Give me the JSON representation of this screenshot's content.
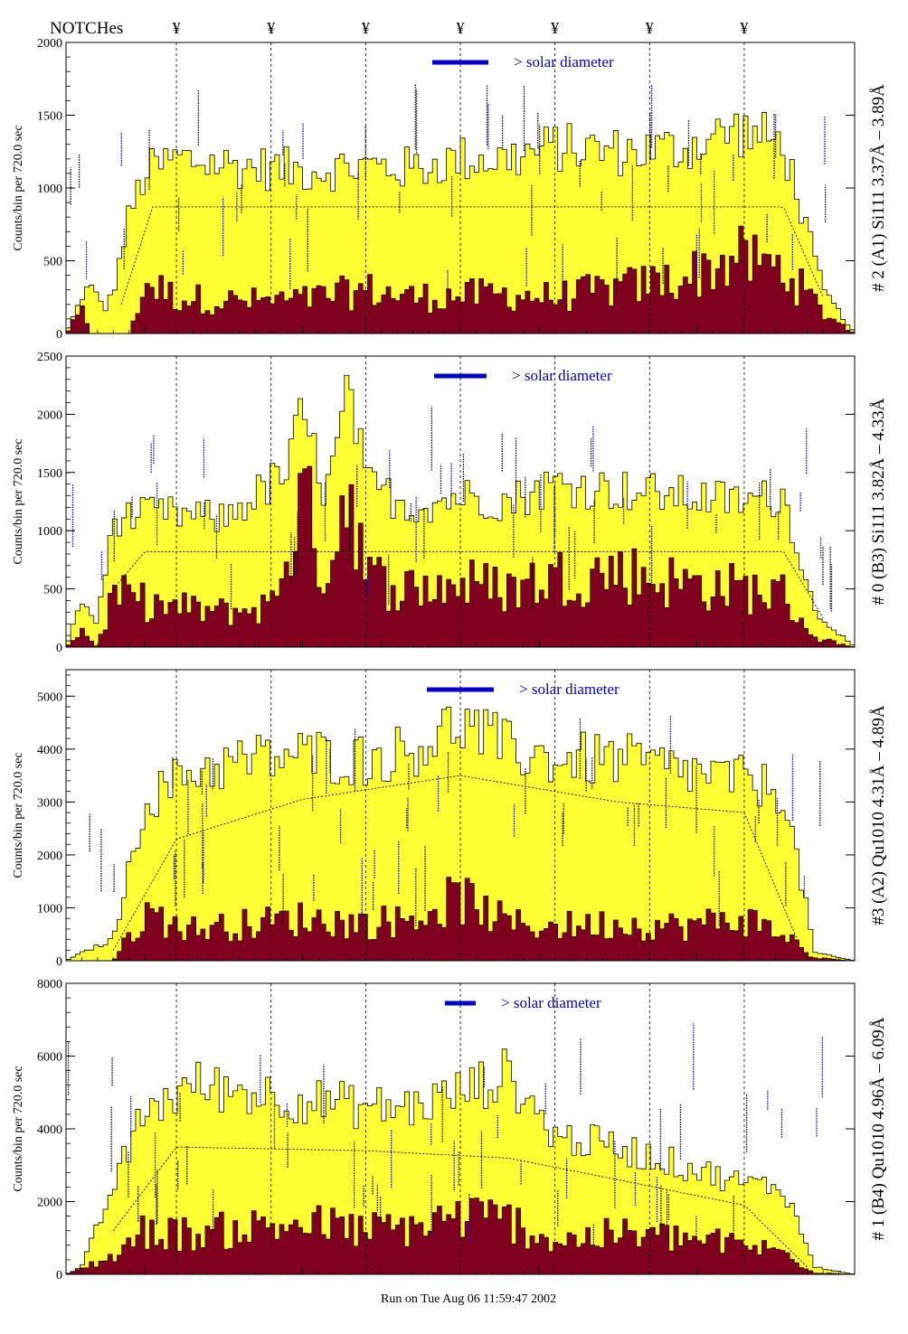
{
  "header": {
    "label": "NOTCHes",
    "notch_symbol": "¥"
  },
  "footer": {
    "run_text": "Run on Tue Aug 06 11:59:47 2002"
  },
  "colors": {
    "total_fill": "#ffff33",
    "component_fill": "#800020",
    "annotation": "#0000cc",
    "axis": "#000000"
  },
  "legend_label": "> solar diameter",
  "notch_positions": [
    140,
    260,
    380,
    500,
    620,
    740,
    860
  ],
  "chart_data": [
    {
      "type": "area",
      "ylabel": "Counts/bin per     720.0 sec",
      "right_label": "# 2 (A1) Si111  3.37Å – 3.89Å",
      "ylim": [
        0,
        2000
      ],
      "yticks": [
        0,
        500,
        1000,
        1500,
        2000
      ],
      "xlim": [
        0,
        1000
      ],
      "total": {
        "values": [
          [
            0,
            0
          ],
          [
            20,
            250
          ],
          [
            30,
            330
          ],
          [
            50,
            170
          ],
          [
            60,
            290
          ],
          [
            80,
            800
          ],
          [
            100,
            1100
          ],
          [
            140,
            1200
          ],
          [
            220,
            1150
          ],
          [
            300,
            1120
          ],
          [
            380,
            1150
          ],
          [
            440,
            1130
          ],
          [
            500,
            1200
          ],
          [
            560,
            1200
          ],
          [
            620,
            1280
          ],
          [
            700,
            1250
          ],
          [
            780,
            1270
          ],
          [
            850,
            1400
          ],
          [
            910,
            1300
          ],
          [
            960,
            300
          ],
          [
            1000,
            0
          ]
        ]
      },
      "component": {
        "values": [
          [
            0,
            0
          ],
          [
            20,
            150
          ],
          [
            30,
            0
          ],
          [
            60,
            0
          ],
          [
            80,
            0
          ],
          [
            100,
            350
          ],
          [
            140,
            250
          ],
          [
            220,
            220
          ],
          [
            300,
            230
          ],
          [
            380,
            300
          ],
          [
            440,
            250
          ],
          [
            500,
            260
          ],
          [
            560,
            270
          ],
          [
            620,
            250
          ],
          [
            700,
            310
          ],
          [
            780,
            380
          ],
          [
            850,
            520
          ],
          [
            910,
            440
          ],
          [
            960,
            150
          ],
          [
            1000,
            0
          ]
        ]
      },
      "smooth": {
        "values": [
          [
            70,
            200
          ],
          [
            110,
            870
          ],
          [
            500,
            870
          ],
          [
            910,
            870
          ],
          [
            960,
            250
          ]
        ]
      }
    },
    {
      "type": "area",
      "ylabel": "Counts/bin per     720.0 sec",
      "right_label": "# 0 (B3) Si111  3.82Å – 4.33Å",
      "ylim": [
        0,
        2500
      ],
      "yticks": [
        0,
        500,
        1000,
        1500,
        2000,
        2500
      ],
      "xlim": [
        0,
        1000
      ],
      "total": {
        "values": [
          [
            0,
            0
          ],
          [
            20,
            400
          ],
          [
            40,
            200
          ],
          [
            60,
            1100
          ],
          [
            120,
            1150
          ],
          [
            200,
            1100
          ],
          [
            280,
            1500
          ],
          [
            300,
            2000
          ],
          [
            330,
            1300
          ],
          [
            360,
            2200
          ],
          [
            380,
            1400
          ],
          [
            440,
            1200
          ],
          [
            500,
            1300
          ],
          [
            560,
            1250
          ],
          [
            620,
            1400
          ],
          [
            700,
            1350
          ],
          [
            780,
            1300
          ],
          [
            860,
            1250
          ],
          [
            910,
            1300
          ],
          [
            950,
            300
          ],
          [
            1000,
            0
          ]
        ]
      },
      "component": {
        "values": [
          [
            0,
            0
          ],
          [
            20,
            150
          ],
          [
            40,
            0
          ],
          [
            60,
            450
          ],
          [
            120,
            350
          ],
          [
            200,
            300
          ],
          [
            260,
            350
          ],
          [
            280,
            800
          ],
          [
            300,
            1300
          ],
          [
            330,
            600
          ],
          [
            360,
            1500
          ],
          [
            380,
            600
          ],
          [
            440,
            500
          ],
          [
            500,
            550
          ],
          [
            560,
            500
          ],
          [
            620,
            600
          ],
          [
            700,
            650
          ],
          [
            780,
            550
          ],
          [
            860,
            500
          ],
          [
            910,
            450
          ],
          [
            950,
            80
          ],
          [
            1000,
            0
          ]
        ]
      },
      "smooth": {
        "values": [
          [
            60,
            500
          ],
          [
            100,
            820
          ],
          [
            500,
            820
          ],
          [
            910,
            820
          ],
          [
            960,
            250
          ]
        ]
      }
    },
    {
      "type": "area",
      "ylabel": "Counts/bin per     720.0 sec",
      "right_label": "#3 (A2) Qu1010  4.31Å – 4.89Å",
      "ylim": [
        0,
        5500
      ],
      "yticks": [
        0,
        1000,
        2000,
        3000,
        4000,
        5000
      ],
      "xlim": [
        0,
        1000
      ],
      "total": {
        "values": [
          [
            0,
            0
          ],
          [
            20,
            150
          ],
          [
            60,
            400
          ],
          [
            100,
            3000
          ],
          [
            160,
            3600
          ],
          [
            240,
            3800
          ],
          [
            300,
            3900
          ],
          [
            380,
            3800
          ],
          [
            440,
            4000
          ],
          [
            500,
            4500
          ],
          [
            560,
            4000
          ],
          [
            620,
            3800
          ],
          [
            700,
            3800
          ],
          [
            780,
            3600
          ],
          [
            860,
            3400
          ],
          [
            910,
            3200
          ],
          [
            950,
            150
          ],
          [
            1000,
            0
          ]
        ]
      },
      "component": {
        "values": [
          [
            0,
            0
          ],
          [
            60,
            0
          ],
          [
            100,
            900
          ],
          [
            160,
            600
          ],
          [
            240,
            700
          ],
          [
            300,
            800
          ],
          [
            380,
            700
          ],
          [
            440,
            800
          ],
          [
            500,
            1200
          ],
          [
            560,
            700
          ],
          [
            620,
            650
          ],
          [
            700,
            700
          ],
          [
            780,
            650
          ],
          [
            860,
            800
          ],
          [
            910,
            500
          ],
          [
            950,
            50
          ],
          [
            1000,
            0
          ]
        ]
      },
      "smooth": {
        "values": [
          [
            60,
            200
          ],
          [
            140,
            2300
          ],
          [
            300,
            3050
          ],
          [
            500,
            3500
          ],
          [
            700,
            3000
          ],
          [
            860,
            2800
          ],
          [
            930,
            300
          ]
        ]
      }
    },
    {
      "type": "area",
      "ylabel": "Counts/bin per     720.0 sec",
      "right_label": "# 1 (B4) Qu1010 4.96Å – 6.09Å",
      "ylim": [
        0,
        8000
      ],
      "yticks": [
        0,
        2000,
        4000,
        6000,
        8000
      ],
      "xlim": [
        0,
        1000
      ],
      "total": {
        "values": [
          [
            0,
            0
          ],
          [
            20,
            200
          ],
          [
            60,
            2400
          ],
          [
            100,
            4500
          ],
          [
            160,
            5200
          ],
          [
            240,
            5000
          ],
          [
            300,
            4800
          ],
          [
            380,
            4600
          ],
          [
            440,
            4600
          ],
          [
            500,
            5000
          ],
          [
            560,
            5500
          ],
          [
            620,
            3800
          ],
          [
            700,
            3500
          ],
          [
            780,
            3000
          ],
          [
            860,
            2500
          ],
          [
            910,
            2400
          ],
          [
            950,
            200
          ],
          [
            1000,
            0
          ]
        ]
      },
      "component": {
        "values": [
          [
            0,
            0
          ],
          [
            60,
            500
          ],
          [
            100,
            1200
          ],
          [
            160,
            1100
          ],
          [
            240,
            1300
          ],
          [
            300,
            1400
          ],
          [
            380,
            1200
          ],
          [
            440,
            1300
          ],
          [
            500,
            1600
          ],
          [
            560,
            1500
          ],
          [
            620,
            900
          ],
          [
            700,
            1100
          ],
          [
            780,
            1000
          ],
          [
            860,
            800
          ],
          [
            910,
            600
          ],
          [
            950,
            50
          ],
          [
            1000,
            0
          ]
        ]
      },
      "smooth": {
        "values": [
          [
            60,
            1200
          ],
          [
            140,
            3500
          ],
          [
            380,
            3400
          ],
          [
            560,
            3200
          ],
          [
            700,
            2600
          ],
          [
            860,
            1900
          ],
          [
            940,
            200
          ]
        ]
      }
    }
  ]
}
